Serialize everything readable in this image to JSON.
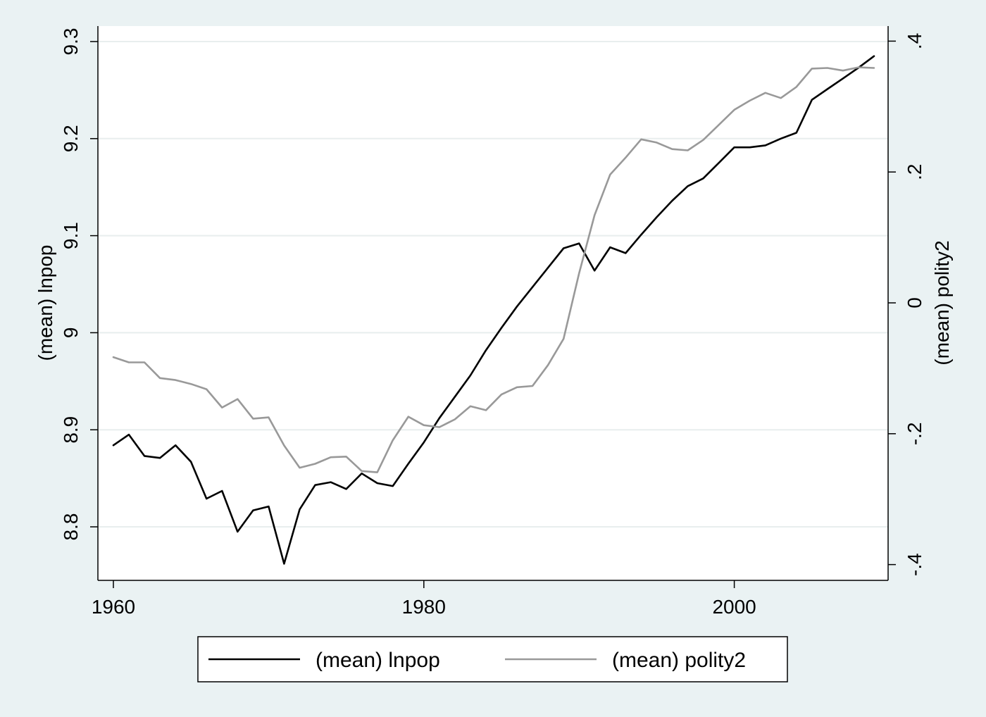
{
  "chart_data": {
    "type": "line",
    "title": "",
    "xlabel": "",
    "xlim": [
      1959.5,
      2009.5
    ],
    "x_ticks": [
      "1960",
      "1980",
      "2000"
    ],
    "x_tick_values": [
      1960,
      1980,
      2000
    ],
    "y_left": {
      "label": "(mean) lnpop",
      "ylim": [
        8.75,
        9.3
      ],
      "ticks": [
        "8.8",
        "8.9",
        "9",
        "9.1",
        "9.2",
        "9.3"
      ],
      "tick_values": [
        8.8,
        8.9,
        9.0,
        9.1,
        9.2,
        9.3
      ]
    },
    "y_right": {
      "label": "(mean) polity2",
      "ylim": [
        -0.42,
        0.42
      ],
      "ticks": [
        "-.4",
        "-.2",
        "0",
        ".2",
        ".4"
      ],
      "tick_values": [
        -0.4,
        -0.2,
        0,
        0.2,
        0.4
      ]
    },
    "grid": true,
    "legend_position": "bottom",
    "x": [
      1960,
      1961,
      1962,
      1963,
      1964,
      1965,
      1966,
      1967,
      1968,
      1969,
      1970,
      1971,
      1972,
      1973,
      1974,
      1975,
      1976,
      1977,
      1978,
      1979,
      1980,
      1981,
      1982,
      1983,
      1984,
      1985,
      1986,
      1987,
      1988,
      1989,
      1990,
      1991,
      1992,
      1993,
      1994,
      1995,
      1996,
      1997,
      1998,
      1999,
      2000,
      2001,
      2002,
      2003,
      2004,
      2005,
      2006,
      2007,
      2008,
      2009
    ],
    "series": [
      {
        "name": "(mean) lnpop",
        "axis": "left",
        "color": "#000000",
        "values": [
          8.884,
          8.895,
          8.873,
          8.871,
          8.884,
          8.867,
          8.829,
          8.837,
          8.795,
          8.817,
          8.821,
          8.762,
          8.818,
          8.843,
          8.846,
          8.839,
          8.855,
          8.845,
          8.842,
          8.865,
          8.887,
          8.912,
          8.934,
          8.956,
          8.982,
          9.005,
          9.027,
          9.047,
          9.067,
          9.087,
          9.092,
          9.064,
          9.088,
          9.082,
          9.101,
          9.119,
          9.136,
          9.151,
          9.159,
          9.175,
          9.191,
          9.191,
          9.193,
          9.2,
          9.206,
          9.24,
          9.251,
          9.262,
          9.273,
          9.285
        ]
      },
      {
        "name": "(mean) polity2",
        "axis": "right",
        "color": "#999999",
        "values": [
          -0.083,
          -0.091,
          -0.091,
          -0.115,
          -0.118,
          -0.124,
          -0.132,
          -0.16,
          -0.147,
          -0.177,
          -0.175,
          -0.218,
          -0.252,
          -0.246,
          -0.236,
          -0.235,
          -0.257,
          -0.259,
          -0.21,
          -0.174,
          -0.187,
          -0.19,
          -0.178,
          -0.158,
          -0.164,
          -0.14,
          -0.129,
          -0.127,
          -0.095,
          -0.055,
          0.045,
          0.134,
          0.196,
          0.222,
          0.25,
          0.245,
          0.235,
          0.233,
          0.249,
          0.272,
          0.295,
          0.309,
          0.321,
          0.313,
          0.33,
          0.358,
          0.359,
          0.355,
          0.36,
          0.359
        ]
      }
    ]
  }
}
